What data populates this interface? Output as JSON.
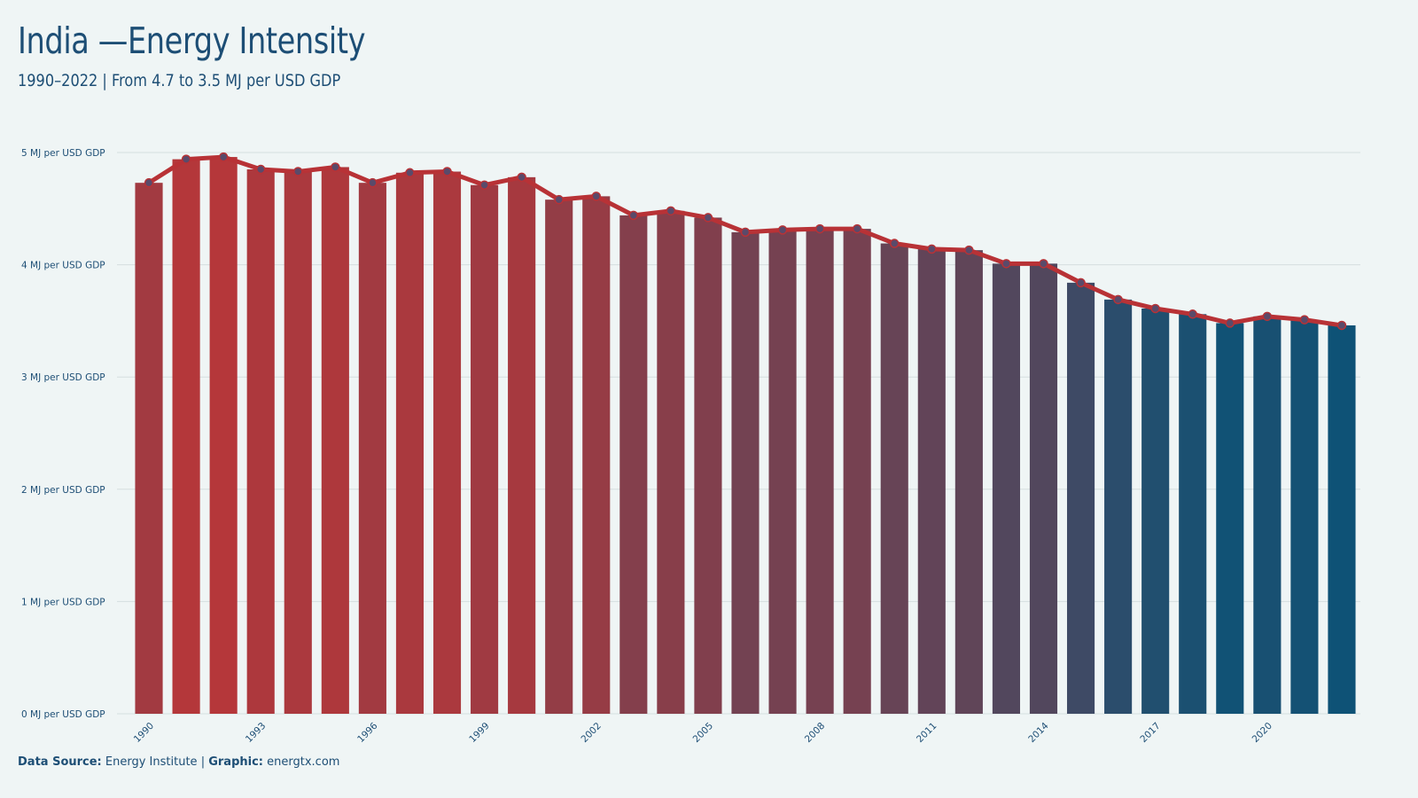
{
  "title": "India —Energy Intensity",
  "subtitle": "1990–2022 | From 4.7 to 3.5 MJ per USD GDP",
  "footer": {
    "source_label": "Data Source:",
    "source_value": "Energy Institute",
    "separator": "|",
    "graphic_label": "Graphic:",
    "graphic_value": "energtx.com"
  },
  "colors": {
    "background": "#eff5f5",
    "bar_start": "#b5373a",
    "bar_end": "#0e5276",
    "line": "#b83236",
    "marker": "#5a4a6a",
    "grid": "#d5dedf",
    "text": "#1d4e75"
  },
  "chart_data": {
    "type": "bar",
    "overlay": "line",
    "x": [
      1990,
      1991,
      1992,
      1993,
      1994,
      1995,
      1996,
      1997,
      1998,
      1999,
      2000,
      2001,
      2002,
      2003,
      2004,
      2005,
      2006,
      2007,
      2008,
      2009,
      2010,
      2011,
      2012,
      2013,
      2014,
      2015,
      2016,
      2017,
      2018,
      2019,
      2020,
      2021,
      2022
    ],
    "values": [
      4.73,
      4.94,
      4.96,
      4.85,
      4.83,
      4.87,
      4.73,
      4.82,
      4.83,
      4.71,
      4.78,
      4.58,
      4.61,
      4.44,
      4.48,
      4.42,
      4.29,
      4.31,
      4.32,
      4.32,
      4.19,
      4.14,
      4.13,
      4.01,
      4.01,
      3.84,
      3.69,
      3.61,
      3.56,
      3.48,
      3.54,
      3.51,
      3.46
    ],
    "x_tick_labels": [
      "1990",
      "1993",
      "1996",
      "1999",
      "2002",
      "2005",
      "2008",
      "2011",
      "2014",
      "2017",
      "2020"
    ],
    "y_ticks": [
      0,
      1,
      2,
      3,
      4,
      5
    ],
    "y_tick_labels": [
      "0 MJ per USD GDP",
      "1 MJ per USD GDP",
      "2 MJ per USD GDP",
      "3 MJ per USD GDP",
      "4 MJ per USD GDP",
      "5 MJ per USD GDP"
    ],
    "ylim": [
      0,
      5
    ],
    "grid": "horizontal",
    "xlabel": "",
    "ylabel": ""
  }
}
